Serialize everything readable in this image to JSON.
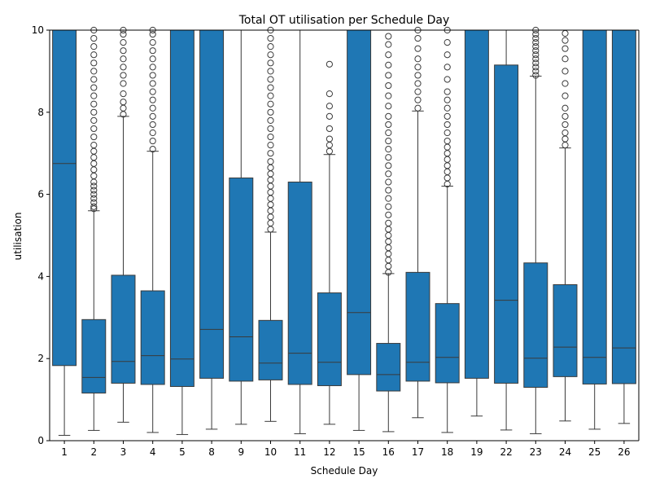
{
  "chart_data": {
    "type": "box",
    "title": "Total OT utilisation per Schedule Day",
    "xlabel": "Schedule Day",
    "ylabel": "utilisation",
    "ylim": [
      0,
      10
    ],
    "yticks": [
      0,
      2,
      4,
      6,
      8,
      10
    ],
    "grid": false,
    "legend": "none",
    "colors": {
      "box": "#1f77b4",
      "edge": "#3a3a3a",
      "outlier": "#3a3a3a"
    },
    "categories": [
      "1",
      "2",
      "3",
      "4",
      "5",
      "8",
      "9",
      "10",
      "11",
      "12",
      "15",
      "16",
      "17",
      "18",
      "19",
      "22",
      "23",
      "24",
      "25",
      "26"
    ],
    "boxes": [
      {
        "category": "1",
        "min": 0.13,
        "q1": 1.83,
        "median": 6.75,
        "q3": 10.0,
        "max": 10.0,
        "outliers": []
      },
      {
        "category": "2",
        "min": 0.25,
        "q1": 1.16,
        "median": 1.54,
        "q3": 2.95,
        "max": 5.6,
        "outliers": [
          5.65,
          5.7,
          5.8,
          5.9,
          6.0,
          6.1,
          6.2,
          6.3,
          6.45,
          6.6,
          6.75,
          6.9,
          7.05,
          7.2,
          7.4,
          7.6,
          7.8,
          8.0,
          8.2,
          8.4,
          8.6,
          8.8,
          9.0,
          9.2,
          9.4,
          9.6,
          9.8,
          10.0
        ]
      },
      {
        "category": "3",
        "min": 0.45,
        "q1": 1.4,
        "median": 1.93,
        "q3": 4.03,
        "max": 7.9,
        "outliers": [
          7.95,
          8.1,
          8.25,
          8.45,
          8.7,
          8.9,
          9.1,
          9.3,
          9.5,
          9.7,
          9.9,
          10.0
        ]
      },
      {
        "category": "4",
        "min": 0.2,
        "q1": 1.37,
        "median": 2.07,
        "q3": 3.65,
        "max": 7.05,
        "outliers": [
          7.1,
          7.3,
          7.5,
          7.7,
          7.9,
          8.1,
          8.3,
          8.5,
          8.7,
          8.9,
          9.1,
          9.3,
          9.5,
          9.7,
          9.9,
          10.0
        ]
      },
      {
        "category": "5",
        "min": 0.15,
        "q1": 1.32,
        "median": 1.99,
        "q3": 10.0,
        "max": 10.0,
        "outliers": []
      },
      {
        "category": "8",
        "min": 0.28,
        "q1": 1.52,
        "median": 2.71,
        "q3": 10.0,
        "max": 10.0,
        "outliers": []
      },
      {
        "category": "9",
        "min": 0.4,
        "q1": 1.45,
        "median": 2.53,
        "q3": 6.4,
        "max": 10.0,
        "outliers": []
      },
      {
        "category": "10",
        "min": 0.47,
        "q1": 1.48,
        "median": 1.89,
        "q3": 2.93,
        "max": 5.08,
        "outliers": [
          5.15,
          5.3,
          5.45,
          5.6,
          5.75,
          5.9,
          6.05,
          6.2,
          6.35,
          6.5,
          6.65,
          6.8,
          7.0,
          7.2,
          7.4,
          7.6,
          7.8,
          8.0,
          8.2,
          8.4,
          8.6,
          8.8,
          9.0,
          9.2,
          9.4,
          9.6,
          9.8,
          10.0
        ]
      },
      {
        "category": "11",
        "min": 0.17,
        "q1": 1.37,
        "median": 2.13,
        "q3": 6.3,
        "max": 10.0,
        "outliers": []
      },
      {
        "category": "12",
        "min": 0.4,
        "q1": 1.34,
        "median": 1.91,
        "q3": 3.6,
        "max": 6.97,
        "outliers": [
          7.05,
          7.2,
          7.35,
          7.6,
          7.9,
          8.15,
          8.45,
          9.17
        ]
      },
      {
        "category": "15",
        "min": 0.25,
        "q1": 1.61,
        "median": 3.12,
        "q3": 10.0,
        "max": 10.0,
        "outliers": []
      },
      {
        "category": "16",
        "min": 0.22,
        "q1": 1.21,
        "median": 1.61,
        "q3": 2.37,
        "max": 4.07,
        "outliers": [
          4.1,
          4.25,
          4.4,
          4.55,
          4.7,
          4.85,
          5.0,
          5.15,
          5.3,
          5.5,
          5.7,
          5.9,
          6.1,
          6.3,
          6.5,
          6.7,
          6.9,
          7.1,
          7.3,
          7.5,
          7.7,
          7.9,
          8.15,
          8.4,
          8.65,
          8.9,
          9.15,
          9.4,
          9.65,
          9.85
        ]
      },
      {
        "category": "17",
        "min": 0.56,
        "q1": 1.45,
        "median": 1.91,
        "q3": 4.1,
        "max": 8.03,
        "outliers": [
          8.1,
          8.3,
          8.5,
          8.7,
          8.9,
          9.1,
          9.3,
          9.55,
          9.8,
          10.0
        ]
      },
      {
        "category": "18",
        "min": 0.2,
        "q1": 1.41,
        "median": 2.03,
        "q3": 3.34,
        "max": 6.2,
        "outliers": [
          6.25,
          6.4,
          6.55,
          6.7,
          6.85,
          7.0,
          7.15,
          7.3,
          7.5,
          7.7,
          7.9,
          8.1,
          8.3,
          8.5,
          8.8,
          9.1,
          9.4,
          9.7,
          10.0
        ]
      },
      {
        "category": "19",
        "min": 0.6,
        "q1": 1.52,
        "median": 10.0,
        "q3": 10.0,
        "max": 10.0,
        "outliers": []
      },
      {
        "category": "22",
        "min": 0.26,
        "q1": 1.4,
        "median": 3.42,
        "q3": 9.15,
        "max": 10.0,
        "outliers": []
      },
      {
        "category": "23",
        "min": 0.17,
        "q1": 1.3,
        "median": 2.01,
        "q3": 4.33,
        "max": 8.88,
        "outliers": [
          8.9,
          9.0,
          9.1,
          9.2,
          9.3,
          9.4,
          9.5,
          9.6,
          9.7,
          9.8,
          9.9,
          10.0
        ]
      },
      {
        "category": "24",
        "min": 0.48,
        "q1": 1.56,
        "median": 2.28,
        "q3": 3.8,
        "max": 7.13,
        "outliers": [
          7.2,
          7.35,
          7.5,
          7.7,
          7.9,
          8.1,
          8.4,
          8.7,
          9.0,
          9.3,
          9.55,
          9.75,
          9.92
        ]
      },
      {
        "category": "25",
        "min": 0.28,
        "q1": 1.38,
        "median": 2.03,
        "q3": 10.0,
        "max": 10.0,
        "outliers": []
      },
      {
        "category": "26",
        "min": 0.42,
        "q1": 1.39,
        "median": 2.26,
        "q3": 10.0,
        "max": 10.0,
        "outliers": []
      }
    ]
  }
}
